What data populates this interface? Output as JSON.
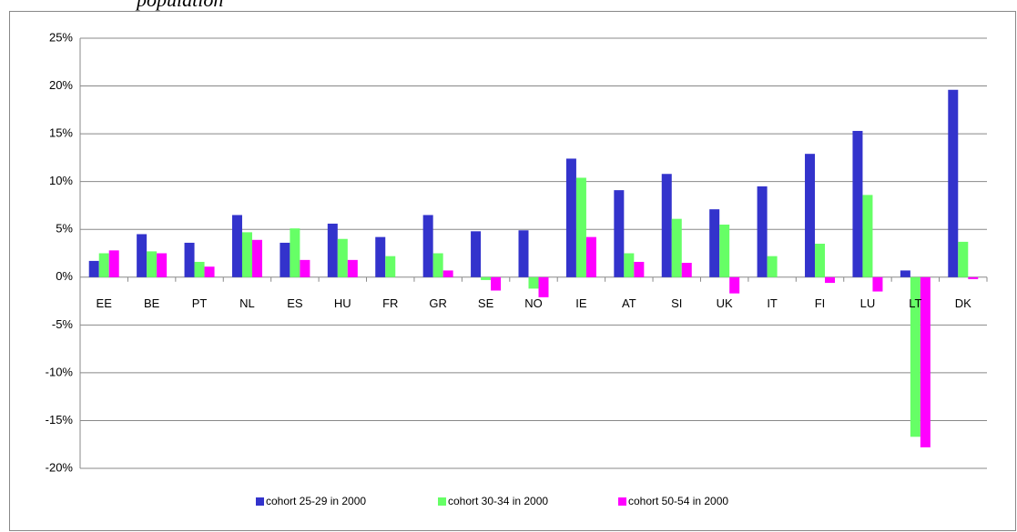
{
  "chart_data": {
    "type": "bar",
    "title": "population",
    "categories": [
      "EE",
      "BE",
      "PT",
      "NL",
      "ES",
      "HU",
      "FR",
      "GR",
      "SE",
      "NO",
      "IE",
      "AT",
      "SI",
      "UK",
      "IT",
      "FI",
      "LU",
      "LT",
      "DK"
    ],
    "series": [
      {
        "name": "cohort 25-29 in 2000",
        "color": "#3333cc",
        "values": [
          1.7,
          4.5,
          3.6,
          6.5,
          3.6,
          5.6,
          4.2,
          6.5,
          4.8,
          4.9,
          12.4,
          9.1,
          10.8,
          7.1,
          9.5,
          12.9,
          15.3,
          0.7,
          19.6
        ]
      },
      {
        "name": "cohort 30-34 in 2000",
        "color": "#66ff66",
        "values": [
          2.5,
          2.7,
          1.6,
          4.7,
          5.1,
          4.0,
          2.2,
          2.5,
          -0.3,
          -1.2,
          10.4,
          2.5,
          6.1,
          5.5,
          2.2,
          3.5,
          8.6,
          -16.7,
          3.7
        ]
      },
      {
        "name": "cohort 50-54 in 2000",
        "color": "#ff00ff",
        "values": [
          2.8,
          2.5,
          1.1,
          3.9,
          1.8,
          1.8,
          0,
          0.7,
          -1.4,
          -2.1,
          4.2,
          1.6,
          1.5,
          -1.7,
          0,
          -0.6,
          -1.5,
          -17.8,
          -0.2
        ]
      }
    ],
    "ylim": [
      -20,
      25
    ],
    "yticks": [
      {
        "value": -20,
        "label": "-20%"
      },
      {
        "value": -15,
        "label": "-15%"
      },
      {
        "value": -10,
        "label": "-10%"
      },
      {
        "value": -5,
        "label": "-5%"
      },
      {
        "value": 0,
        "label": "0%"
      },
      {
        "value": 5,
        "label": "5%"
      },
      {
        "value": 10,
        "label": "10%"
      },
      {
        "value": 15,
        "label": "15%"
      },
      {
        "value": 20,
        "label": "20%"
      },
      {
        "value": 25,
        "label": "25%"
      }
    ],
    "grid": true
  }
}
